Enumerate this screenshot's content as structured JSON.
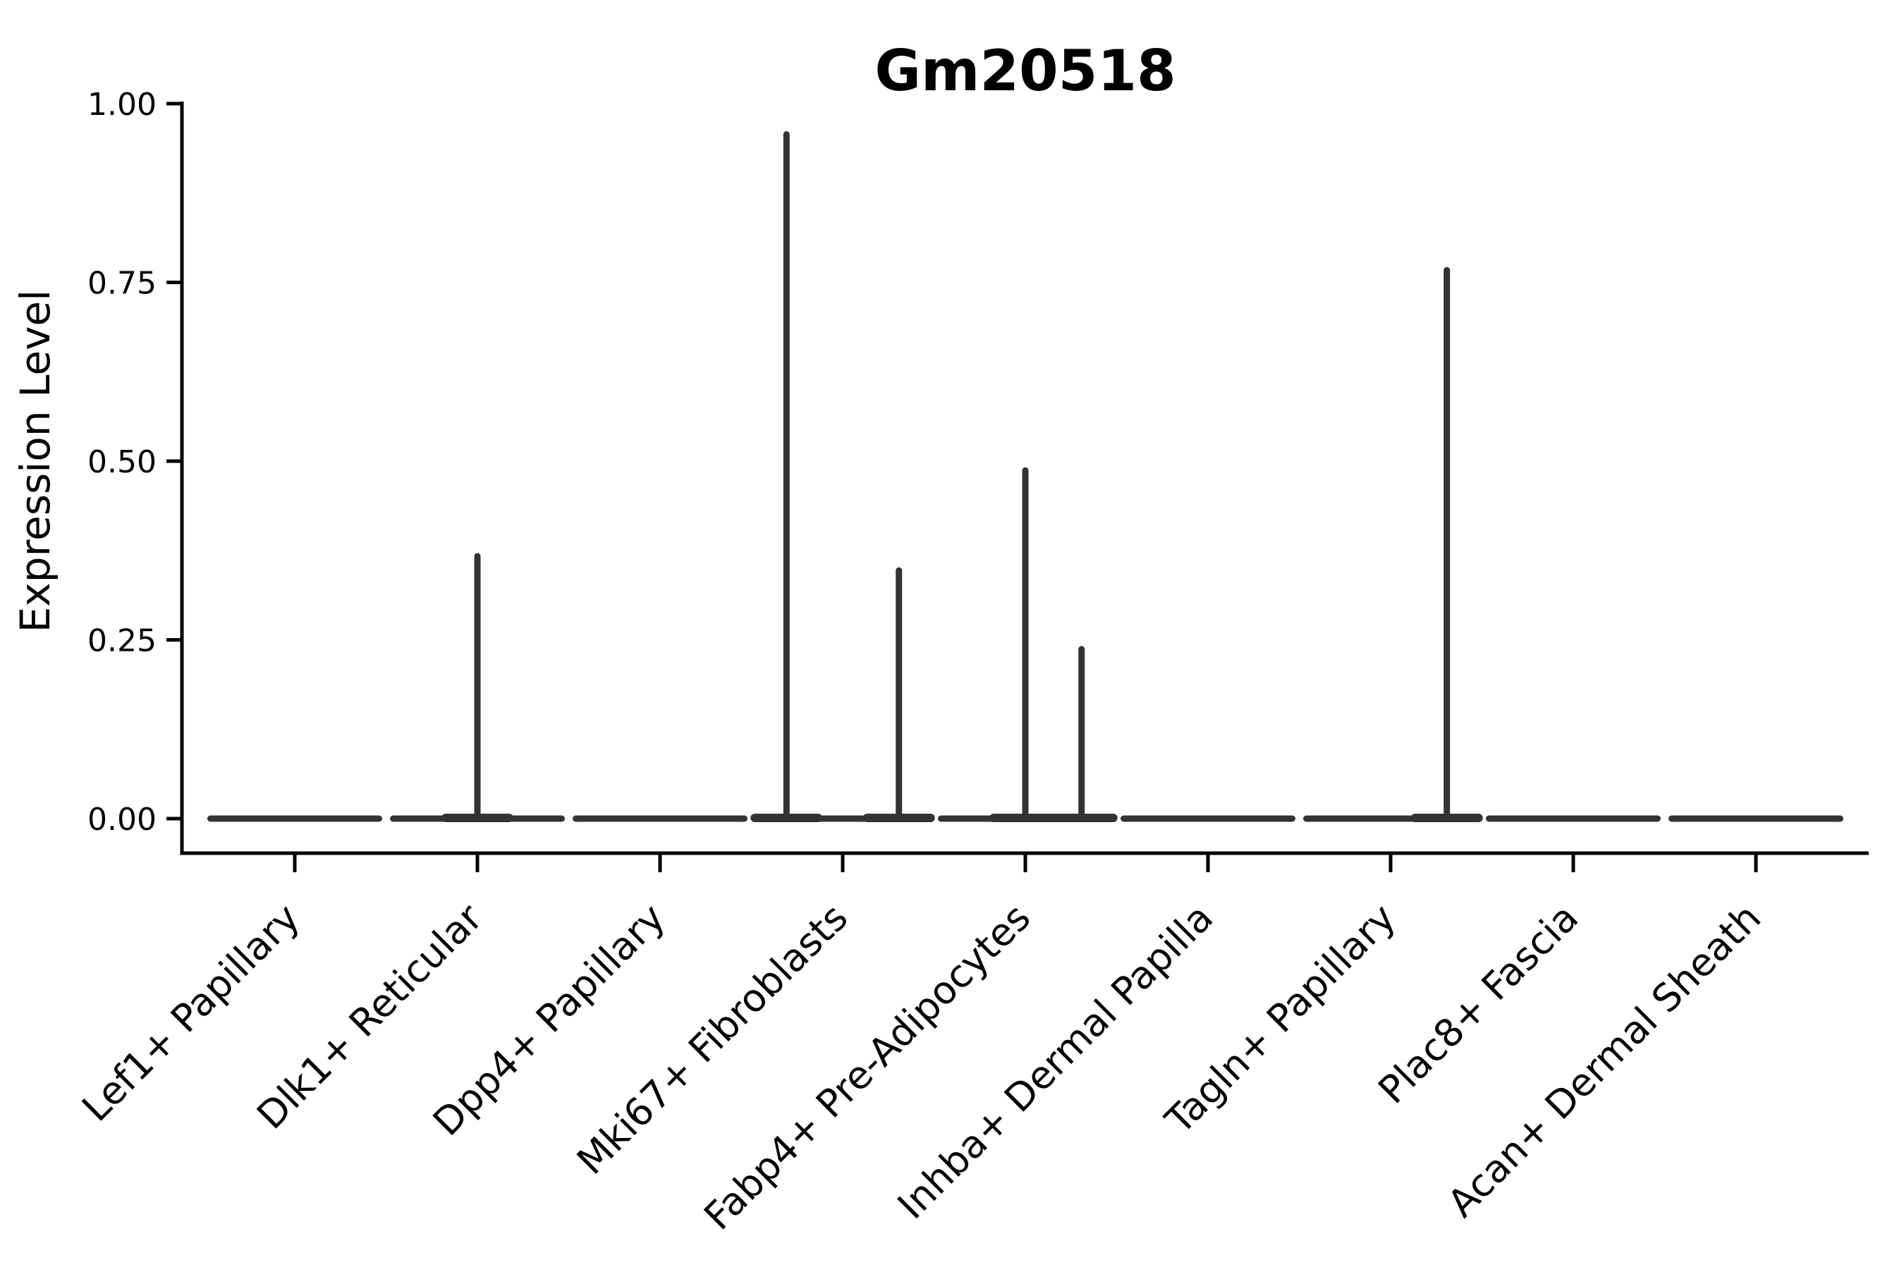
{
  "chart_data": {
    "type": "violin",
    "title": "Gm20518",
    "xlabel": "",
    "ylabel": "Expression Level",
    "ylim": [
      0,
      1
    ],
    "yticks": [
      0.0,
      0.25,
      0.5,
      0.75,
      1.0
    ],
    "ytick_labels": [
      "0.00",
      "0.25",
      "0.50",
      "0.75",
      "1.00"
    ],
    "categories": [
      "Lef1+ Papillary",
      "Dlk1+ Reticular",
      "Dpp4+ Papillary",
      "Mki67+ Fibroblasts",
      "Fabp4+ Pre-Adipocytes",
      "Inhba+ Dermal Papilla",
      "Tagln+ Papillary",
      "Plac8+ Fascia",
      "Acan+ Dermal Sheath"
    ],
    "x_tick_rotation_deg": 45,
    "groups_per_category": 3,
    "group_slots": [
      "left",
      "middle",
      "right"
    ],
    "violins": [
      {
        "category": "Lef1+ Papillary",
        "baseline_value": 0,
        "spikes": []
      },
      {
        "category": "Dlk1+ Reticular",
        "baseline_value": 0,
        "spikes": [
          {
            "group": "middle",
            "max": 0.37
          }
        ]
      },
      {
        "category": "Dpp4+ Papillary",
        "baseline_value": 0,
        "spikes": []
      },
      {
        "category": "Mki67+ Fibroblasts",
        "baseline_value": 0,
        "spikes": [
          {
            "group": "left",
            "max": 0.96
          },
          {
            "group": "right",
            "max": 0.35
          }
        ]
      },
      {
        "category": "Fabp4+ Pre-Adipocytes",
        "baseline_value": 0,
        "spikes": [
          {
            "group": "middle",
            "max": 0.49
          },
          {
            "group": "right",
            "max": 0.24
          }
        ]
      },
      {
        "category": "Inhba+ Dermal Papilla",
        "baseline_value": 0,
        "spikes": []
      },
      {
        "category": "Tagln+ Papillary",
        "baseline_value": 0,
        "spikes": [
          {
            "group": "right",
            "max": 0.77
          }
        ]
      },
      {
        "category": "Plac8+ Fascia",
        "baseline_value": 0,
        "spikes": []
      },
      {
        "category": "Acan+ Dermal Sheath",
        "baseline_value": 0,
        "spikes": []
      }
    ],
    "legend": "none",
    "grid": "off",
    "colors": {
      "violin": "#333333",
      "axis": "#000000",
      "text": "#000000",
      "background": "#ffffff"
    }
  }
}
